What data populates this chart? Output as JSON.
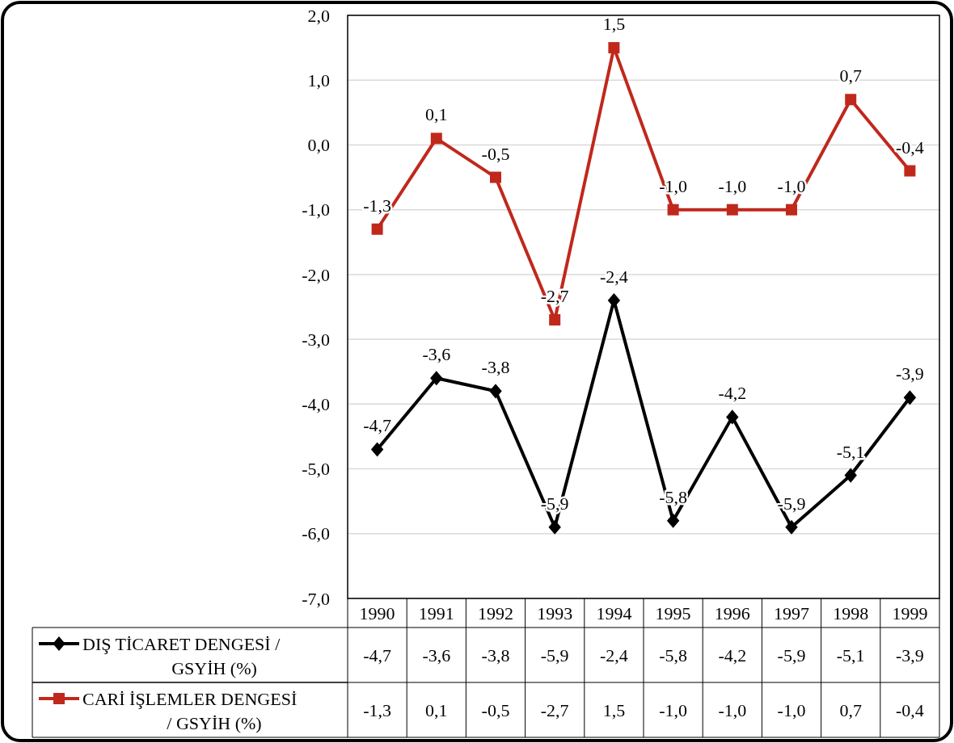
{
  "chart_data": {
    "type": "line",
    "categories": [
      "1990",
      "1991",
      "1992",
      "1993",
      "1994",
      "1995",
      "1996",
      "1997",
      "1998",
      "1999"
    ],
    "series": [
      {
        "name": "DIŞ TİCARET DENGESİ / GSYİH (%)",
        "color": "#000000",
        "marker": "diamond",
        "values": [
          -4.7,
          -3.6,
          -3.8,
          -5.9,
          -2.4,
          -5.8,
          -4.2,
          -5.9,
          -5.1,
          -3.9
        ],
        "value_labels": [
          "-4,7",
          "-3,6",
          "-3,8",
          "-5,9",
          "-2,4",
          "-5,8",
          "-4,2",
          "-5,9",
          "-5,1",
          "-3,9"
        ]
      },
      {
        "name": "CARİ İŞLEMLER DENGESİ / GSYİH (%)",
        "color": "#c0281c",
        "marker": "square",
        "values": [
          -1.3,
          0.1,
          -0.5,
          -2.7,
          1.5,
          -1.0,
          -1.0,
          -1.0,
          0.7,
          -0.4
        ],
        "value_labels": [
          "-1,3",
          "0,1",
          "-0,5",
          "-2,7",
          "1,5",
          "-1,0",
          "-1,0",
          "-1,0",
          "0,7",
          "-0,4"
        ]
      }
    ],
    "ylim": [
      -7,
      2
    ],
    "yticks": [
      {
        "value": -7,
        "label": "-7,0"
      },
      {
        "value": -6,
        "label": "-6,0"
      },
      {
        "value": -5,
        "label": "-5,0"
      },
      {
        "value": -4,
        "label": "-4,0"
      },
      {
        "value": -3,
        "label": "-3,0"
      },
      {
        "value": -2,
        "label": "-2,0"
      },
      {
        "value": -1,
        "label": "-1,0"
      },
      {
        "value": 0,
        "label": "0,0"
      },
      {
        "value": 1,
        "label": "1,0"
      },
      {
        "value": 2,
        "label": "2,0"
      }
    ],
    "grid": "y",
    "legend": "bottom",
    "line_style": "solid"
  }
}
